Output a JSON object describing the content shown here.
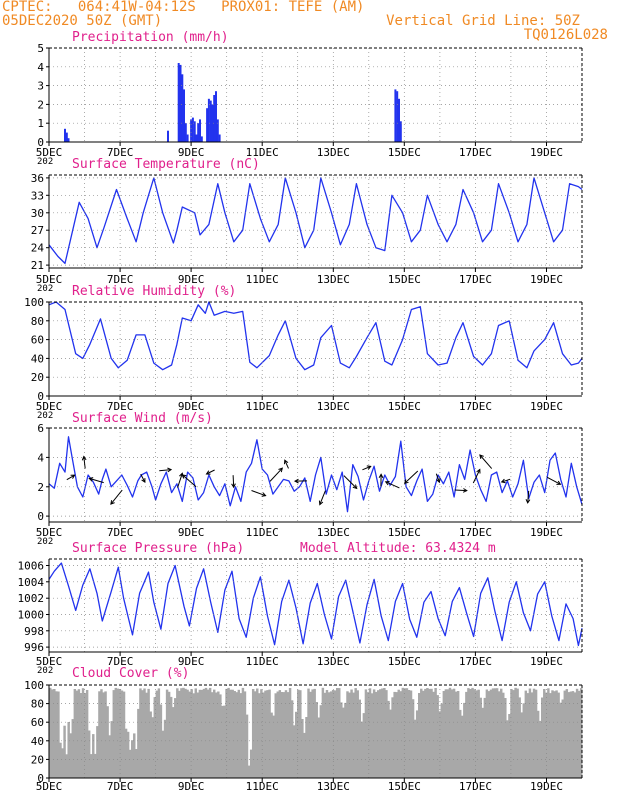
{
  "header": {
    "line1": "CPTEC:   064:41W-04:12S   PROX01: TEFE (AM)",
    "line2_left": "05DEC2020 50Z (GMT)",
    "line2_right": "Vertical Grid Line: 50Z",
    "line3_right": "TQ0126L028"
  },
  "colors": {
    "header": "#f08a24",
    "title": "#e0208c",
    "series": "#2233ee",
    "bars": "#2233ee",
    "cloud": "#a8a8a8",
    "grid": "#888888"
  },
  "x_axis": {
    "range_days": [
      5,
      20
    ],
    "tick_days": [
      5,
      7,
      9,
      11,
      13,
      15,
      17,
      19
    ],
    "tick_labels": [
      "5DEC",
      "7DEC",
      "9DEC",
      "11DEC",
      "13DEC",
      "15DEC",
      "17DEC",
      "19DEC"
    ],
    "year_stub": "202"
  },
  "chart_data": [
    {
      "type": "bar",
      "title": "Precipitation (mm/h)",
      "ylim": [
        0,
        5
      ],
      "yticks": [
        0,
        1,
        2,
        3,
        4,
        5
      ],
      "grid": true,
      "x": [
        5.45,
        5.5,
        5.55,
        8.35,
        8.65,
        8.7,
        8.75,
        8.8,
        8.85,
        8.9,
        9.0,
        9.05,
        9.1,
        9.15,
        9.2,
        9.25,
        9.3,
        9.45,
        9.5,
        9.55,
        9.6,
        9.65,
        9.7,
        9.75,
        9.8,
        14.75,
        14.8,
        14.85,
        14.9
      ],
      "values": [
        0.7,
        0.5,
        0.2,
        0.6,
        4.2,
        4.1,
        3.6,
        2.8,
        1.0,
        0.4,
        1.2,
        1.3,
        1.1,
        0.4,
        1.0,
        1.2,
        0.3,
        1.8,
        2.3,
        2.2,
        2.0,
        2.5,
        2.7,
        1.2,
        0.4,
        2.8,
        2.7,
        2.3,
        1.1
      ]
    },
    {
      "type": "line",
      "title": "Surface Temperature (nC)",
      "ylim": [
        20.5,
        36.5
      ],
      "yticks": [
        21,
        24,
        27,
        30,
        33,
        36
      ],
      "grid": true,
      "x": [
        5,
        5.25,
        5.45,
        5.85,
        6.1,
        6.35,
        6.55,
        6.9,
        7.2,
        7.45,
        7.65,
        7.95,
        8.2,
        8.5,
        8.6,
        8.75,
        9.1,
        9.25,
        9.5,
        9.75,
        9.95,
        10.2,
        10.45,
        10.65,
        10.95,
        11.2,
        11.45,
        11.65,
        11.95,
        12.2,
        12.45,
        12.65,
        12.95,
        13.2,
        13.45,
        13.65,
        13.95,
        14.2,
        14.45,
        14.65,
        14.95,
        15.2,
        15.45,
        15.65,
        15.95,
        16.2,
        16.45,
        16.65,
        16.95,
        17.2,
        17.45,
        17.65,
        17.95,
        18.2,
        18.45,
        18.65,
        18.95,
        19.2,
        19.45,
        19.65,
        19.9,
        20
      ],
      "values": [
        24.5,
        22.5,
        21.3,
        31.8,
        29,
        24,
        27.5,
        34,
        29,
        25,
        30,
        36,
        30,
        24.8,
        27,
        31,
        30,
        26.2,
        28,
        35,
        30,
        25,
        27,
        35,
        29,
        25,
        28,
        36,
        30,
        24,
        27,
        36,
        30,
        24.5,
        28,
        35,
        28,
        24,
        23.5,
        33,
        30,
        25,
        27,
        33,
        28,
        25,
        28,
        34,
        30,
        25,
        27,
        35,
        30,
        25,
        28,
        36,
        30,
        25,
        27,
        35,
        34.5,
        34
      ]
    },
    {
      "type": "line",
      "title": "Relative Humidity (%)",
      "ylim": [
        0,
        100
      ],
      "yticks": [
        0,
        20,
        40,
        60,
        80,
        100
      ],
      "grid": true,
      "x": [
        5,
        5.2,
        5.45,
        5.75,
        5.95,
        6.15,
        6.45,
        6.75,
        6.95,
        7.2,
        7.45,
        7.7,
        7.95,
        8.2,
        8.45,
        8.6,
        8.75,
        9.0,
        9.2,
        9.4,
        9.5,
        9.65,
        9.95,
        10.2,
        10.45,
        10.65,
        10.85,
        11.2,
        11.45,
        11.65,
        11.95,
        12.2,
        12.45,
        12.65,
        12.95,
        13.2,
        13.45,
        13.65,
        13.95,
        14.2,
        14.45,
        14.65,
        14.95,
        15.2,
        15.45,
        15.65,
        15.95,
        16.2,
        16.45,
        16.65,
        16.95,
        17.2,
        17.45,
        17.65,
        17.95,
        18.2,
        18.45,
        18.65,
        18.95,
        19.2,
        19.45,
        19.7,
        19.9,
        20
      ],
      "values": [
        97,
        100,
        92,
        45,
        40,
        55,
        82,
        40,
        30,
        38,
        65,
        65,
        35,
        28,
        33,
        55,
        83,
        80,
        97,
        88,
        100,
        86,
        90,
        88,
        90,
        36,
        30,
        43,
        65,
        80,
        40,
        28,
        33,
        62,
        75,
        35,
        30,
        42,
        62,
        78,
        37,
        33,
        60,
        92,
        95,
        45,
        33,
        35,
        62,
        78,
        42,
        33,
        45,
        75,
        80,
        38,
        30,
        48,
        60,
        78,
        45,
        33,
        35,
        40
      ]
    },
    {
      "type": "line",
      "title": "Surface Wind (m/s)",
      "ylim": [
        -0.4,
        6
      ],
      "yticks": [
        0,
        2,
        4,
        6
      ],
      "grid": true,
      "x": [
        5,
        5.15,
        5.3,
        5.45,
        5.55,
        5.65,
        5.8,
        5.95,
        6.1,
        6.25,
        6.4,
        6.5,
        6.6,
        6.75,
        6.9,
        7.05,
        7.2,
        7.35,
        7.5,
        7.6,
        7.75,
        7.9,
        8.0,
        8.15,
        8.3,
        8.45,
        8.6,
        8.75,
        8.9,
        9.05,
        9.2,
        9.35,
        9.5,
        9.65,
        9.8,
        9.95,
        10.1,
        10.25,
        10.4,
        10.55,
        10.7,
        10.85,
        11.0,
        11.15,
        11.3,
        11.45,
        11.6,
        11.75,
        11.9,
        12.05,
        12.2,
        12.35,
        12.5,
        12.65,
        12.8,
        12.95,
        13.1,
        13.25,
        13.4,
        13.55,
        13.7,
        13.85,
        14.0,
        14.15,
        14.3,
        14.45,
        14.6,
        14.75,
        14.9,
        15.05,
        15.2,
        15.35,
        15.5,
        15.65,
        15.8,
        15.95,
        16.1,
        16.25,
        16.4,
        16.55,
        16.7,
        16.85,
        17.0,
        17.15,
        17.3,
        17.45,
        17.6,
        17.75,
        17.9,
        18.05,
        18.2,
        18.35,
        18.5,
        18.65,
        18.8,
        18.95,
        19.1,
        19.25,
        19.4,
        19.55,
        19.7,
        19.85,
        20
      ],
      "values": [
        2.2,
        1.9,
        3.6,
        3.0,
        5.4,
        4.0,
        2.0,
        1.3,
        2.8,
        2.3,
        1.5,
        2.5,
        3.2,
        2.0,
        2.4,
        2.8,
        2.1,
        1.3,
        2.4,
        2.8,
        3.0,
        2.0,
        1.1,
        2.2,
        3.0,
        1.6,
        2.2,
        1.0,
        3.0,
        2.6,
        1.1,
        1.6,
        2.8,
        2.0,
        1.4,
        2.2,
        0.7,
        2.0,
        1.0,
        3.0,
        3.6,
        5.2,
        3.2,
        2.8,
        1.5,
        2.0,
        2.5,
        2.4,
        1.7,
        2.0,
        2.6,
        1.0,
        2.8,
        4.0,
        1.5,
        2.8,
        1.8,
        3.0,
        0.3,
        3.5,
        2.7,
        1.1,
        2.4,
        3.4,
        1.7,
        2.8,
        2.1,
        2.7,
        5.1,
        2.0,
        1.4,
        2.4,
        3.2,
        1.0,
        1.5,
        2.8,
        2.2,
        3.0,
        1.3,
        3.5,
        2.5,
        4.5,
        2.8,
        1.8,
        1.0,
        2.8,
        3.0,
        1.6,
        2.4,
        1.3,
        2.2,
        3.8,
        1.2,
        2.3,
        2.8,
        1.6,
        3.8,
        4.3,
        2.5,
        1.3,
        3.6,
        2.0,
        0.8
      ]
    },
    {
      "type": "line",
      "title": "Surface Pressure (hPa)",
      "annotation": "Model Altitude: 63.4324 m",
      "ylim": [
        995.4,
        1006.8
      ],
      "yticks": [
        996,
        998,
        1000,
        1002,
        1004,
        1006
      ],
      "grid": true,
      "x": [
        5,
        5.15,
        5.35,
        5.55,
        5.75,
        5.95,
        6.15,
        6.35,
        6.5,
        6.75,
        6.95,
        7.1,
        7.35,
        7.55,
        7.8,
        7.95,
        8.15,
        8.35,
        8.55,
        8.8,
        8.95,
        9.15,
        9.35,
        9.55,
        9.75,
        9.95,
        10.15,
        10.35,
        10.55,
        10.75,
        10.95,
        11.15,
        11.35,
        11.55,
        11.75,
        11.95,
        12.15,
        12.35,
        12.55,
        12.75,
        12.95,
        13.15,
        13.35,
        13.55,
        13.75,
        13.95,
        14.15,
        14.35,
        14.55,
        14.75,
        14.95,
        15.15,
        15.35,
        15.55,
        15.75,
        15.95,
        16.15,
        16.35,
        16.55,
        16.75,
        16.95,
        17.15,
        17.35,
        17.55,
        17.75,
        17.95,
        18.15,
        18.35,
        18.55,
        18.75,
        18.95,
        19.15,
        19.35,
        19.55,
        19.75,
        19.9,
        20
      ],
      "values": [
        1004.3,
        1005.3,
        1006.3,
        1003.5,
        1000.5,
        1003.6,
        1005.6,
        1002.6,
        999.2,
        1002.8,
        1005.8,
        1002.0,
        997.5,
        1002.6,
        1005.2,
        1001.5,
        998.2,
        1003.8,
        1006.0,
        1001.0,
        998.6,
        1003.2,
        1005.6,
        1001.5,
        997.8,
        1003.0,
        1005.3,
        999.5,
        997.2,
        1002.0,
        1004.6,
        999.8,
        996.3,
        1001.6,
        1004.2,
        1000.8,
        996.4,
        1001.4,
        1003.8,
        1000.0,
        997.0,
        1002.2,
        1004.2,
        1000.4,
        996.5,
        1001.2,
        1004.3,
        999.8,
        996.8,
        1001.6,
        1003.8,
        999.4,
        997.2,
        1001.5,
        1002.8,
        999.5,
        997.4,
        1001.6,
        1003.3,
        1000.2,
        997.3,
        1002.6,
        1004.5,
        1000.4,
        996.8,
        1001.5,
        1004.0,
        1000.2,
        998.0,
        1002.5,
        1004.0,
        999.8,
        996.8,
        1001.3,
        999.5,
        996.2,
        998.3
      ]
    },
    {
      "type": "area",
      "title": "Cloud Cover (%)",
      "ylim": [
        0,
        100
      ],
      "yticks": [
        0,
        20,
        40,
        60,
        80,
        100
      ],
      "grid": true,
      "base": 97,
      "dips": [
        {
          "x": 5.35,
          "value": 8
        },
        {
          "x": 5.5,
          "value": 20
        },
        {
          "x": 5.6,
          "value": 45
        },
        {
          "x": 6.2,
          "value": 10
        },
        {
          "x": 6.3,
          "value": 25
        },
        {
          "x": 6.7,
          "value": 45
        },
        {
          "x": 7.2,
          "value": 40
        },
        {
          "x": 7.3,
          "value": 10
        },
        {
          "x": 7.45,
          "value": 30
        },
        {
          "x": 7.9,
          "value": 60
        },
        {
          "x": 8.2,
          "value": 50
        },
        {
          "x": 8.5,
          "value": 75
        },
        {
          "x": 9.9,
          "value": 70
        },
        {
          "x": 10.6,
          "value": 55
        },
        {
          "x": 10.65,
          "value": 2
        },
        {
          "x": 11.3,
          "value": 62
        },
        {
          "x": 11.9,
          "value": 55
        },
        {
          "x": 12.2,
          "value": 40
        },
        {
          "x": 12.6,
          "value": 62
        },
        {
          "x": 13.3,
          "value": 70
        },
        {
          "x": 13.8,
          "value": 60
        },
        {
          "x": 14.6,
          "value": 72
        },
        {
          "x": 15.3,
          "value": 62
        },
        {
          "x": 16.0,
          "value": 70
        },
        {
          "x": 16.6,
          "value": 60
        },
        {
          "x": 17.2,
          "value": 75
        },
        {
          "x": 17.9,
          "value": 60
        },
        {
          "x": 18.3,
          "value": 70
        },
        {
          "x": 18.8,
          "value": 58
        },
        {
          "x": 19.4,
          "value": 80
        }
      ]
    }
  ]
}
